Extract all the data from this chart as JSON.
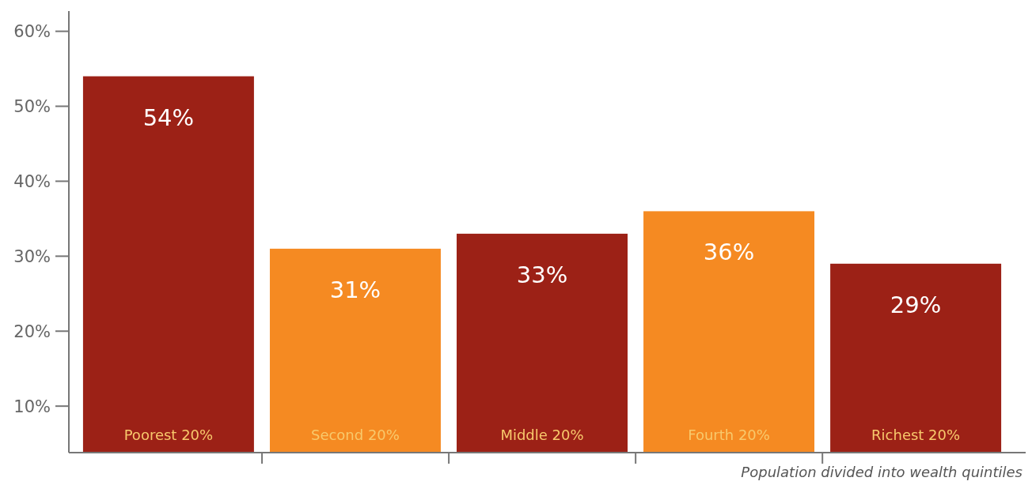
{
  "chart_data": {
    "type": "bar",
    "xlabel": "Population divided into wealth quintiles",
    "categories": [
      "Poorest 20%",
      "Second 20%",
      "Middle 20%",
      "Fourth 20%",
      "Richest 20%"
    ],
    "values": [
      54,
      31,
      33,
      36,
      29
    ],
    "colors": [
      "#9c2116",
      "#f58a22",
      "#9c2116",
      "#f58a22",
      "#9c2116"
    ],
    "ylim": [
      3.8,
      62.7
    ],
    "yticks": [
      {
        "value": 10,
        "label": "10%"
      },
      {
        "value": 20,
        "label": "20%"
      },
      {
        "value": 30,
        "label": "30%"
      },
      {
        "value": 40,
        "label": "40%"
      },
      {
        "value": 50,
        "label": "50%"
      },
      {
        "value": 60,
        "label": "60%"
      }
    ],
    "value_labels": [
      "54%",
      "31%",
      "33%",
      "36%",
      "29%"
    ]
  }
}
